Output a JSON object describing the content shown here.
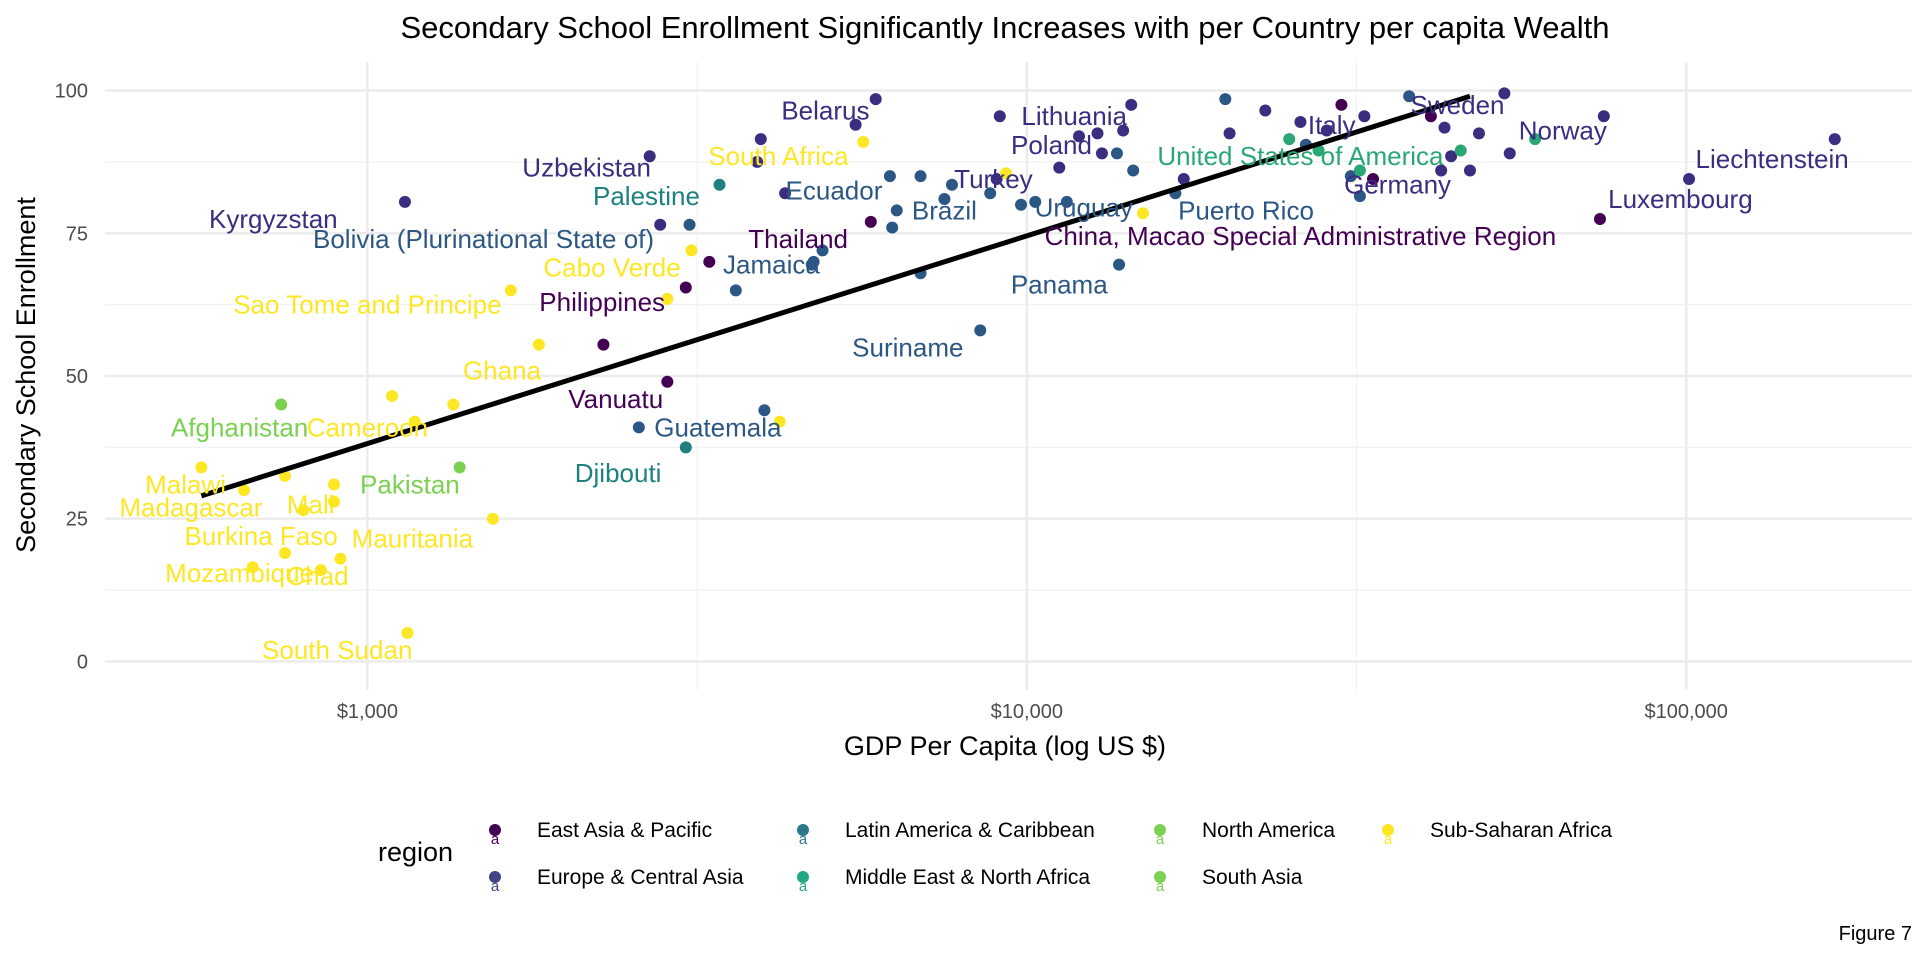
{
  "chart_data": {
    "type": "scatter",
    "title": "Secondary School Enrollment Significantly Increases with per Country per capita Wealth",
    "xlabel": "GDP Per Capita (log US $)",
    "ylabel": "Secondary School Enrollment",
    "x_scale": "log10",
    "xlim": [
      400,
      220000
    ],
    "ylim": [
      -5,
      105
    ],
    "x_ticks": [
      1000,
      10000,
      100000
    ],
    "x_tick_labels": [
      "$1,000",
      "$10,000",
      "$100,000"
    ],
    "y_ticks": [
      0,
      25,
      50,
      75,
      100
    ],
    "y_tick_labels": [
      "0",
      "25",
      "50",
      "75",
      "100"
    ],
    "grid": true,
    "legend": {
      "title": "region",
      "position": "bottom",
      "entries": [
        {
          "name": "East Asia & Pacific",
          "color": "#440154"
        },
        {
          "name": "Europe & Central Asia",
          "color": "#414487"
        },
        {
          "name": "Latin America & Caribbean",
          "color": "#2A788E"
        },
        {
          "name": "Middle East & North Africa",
          "color": "#22A884"
        },
        {
          "name": "North America",
          "color": "#7AD151"
        },
        {
          "name": "South Asia",
          "color": "#7AD151"
        },
        {
          "name": "Sub-Saharan Africa",
          "color": "#FDE725"
        }
      ]
    },
    "colors": {
      "East Asia & Pacific": "#440154",
      "Europe & Central Asia": "#3b2d80",
      "Latin America & Caribbean": "#2c5784",
      "Middle East & North Africa": "#1f8080",
      "North America": "#2ba776",
      "South Asia": "#7ad151",
      "Sub-Saharan Africa": "#fde725"
    },
    "trend_line": {
      "x": [
        560,
        47000
      ],
      "y": [
        29,
        99
      ]
    },
    "points": [
      {
        "x": 560,
        "y": 34,
        "r": "Sub-Saharan Africa"
      },
      {
        "x": 650,
        "y": 30,
        "r": "Sub-Saharan Africa"
      },
      {
        "x": 670,
        "y": 16.5,
        "r": "Sub-Saharan Africa"
      },
      {
        "x": 740,
        "y": 45,
        "r": "South Asia"
      },
      {
        "x": 750,
        "y": 32.5,
        "r": "Sub-Saharan Africa"
      },
      {
        "x": 750,
        "y": 19,
        "r": "Sub-Saharan Africa"
      },
      {
        "x": 800,
        "y": 26.5,
        "r": "Sub-Saharan Africa"
      },
      {
        "x": 850,
        "y": 16,
        "r": "Sub-Saharan Africa"
      },
      {
        "x": 890,
        "y": 31,
        "r": "Sub-Saharan Africa"
      },
      {
        "x": 890,
        "y": 28,
        "r": "Sub-Saharan Africa"
      },
      {
        "x": 910,
        "y": 18,
        "r": "Sub-Saharan Africa"
      },
      {
        "x": 1090,
        "y": 46.5,
        "r": "Sub-Saharan Africa"
      },
      {
        "x": 1140,
        "y": 80.5,
        "r": "Europe & Central Asia"
      },
      {
        "x": 1150,
        "y": 5,
        "r": "Sub-Saharan Africa"
      },
      {
        "x": 1180,
        "y": 42,
        "r": "Sub-Saharan Africa"
      },
      {
        "x": 1350,
        "y": 45,
        "r": "Sub-Saharan Africa"
      },
      {
        "x": 1380,
        "y": 34,
        "r": "South Asia"
      },
      {
        "x": 1550,
        "y": 25,
        "r": "Sub-Saharan Africa"
      },
      {
        "x": 1650,
        "y": 65,
        "r": "Sub-Saharan Africa"
      },
      {
        "x": 1820,
        "y": 55.5,
        "r": "Sub-Saharan Africa"
      },
      {
        "x": 2280,
        "y": 55.5,
        "r": "East Asia & Pacific"
      },
      {
        "x": 2580,
        "y": 41,
        "r": "Latin America & Caribbean"
      },
      {
        "x": 2680,
        "y": 88.5,
        "r": "Europe & Central Asia"
      },
      {
        "x": 2780,
        "y": 76.5,
        "r": "Europe & Central Asia"
      },
      {
        "x": 2850,
        "y": 63.5,
        "r": "Sub-Saharan Africa"
      },
      {
        "x": 2850,
        "y": 49,
        "r": "East Asia & Pacific"
      },
      {
        "x": 3040,
        "y": 37.5,
        "r": "Middle East & North Africa"
      },
      {
        "x": 3040,
        "y": 65.5,
        "r": "East Asia & Pacific"
      },
      {
        "x": 3080,
        "y": 76.5,
        "r": "Latin America & Caribbean"
      },
      {
        "x": 3100,
        "y": 72,
        "r": "Sub-Saharan Africa"
      },
      {
        "x": 3300,
        "y": 70,
        "r": "East Asia & Pacific"
      },
      {
        "x": 3420,
        "y": 83.5,
        "r": "Middle East & North Africa"
      },
      {
        "x": 3620,
        "y": 65,
        "r": "Latin America & Caribbean"
      },
      {
        "x": 3900,
        "y": 87.5,
        "r": "Europe & Central Asia"
      },
      {
        "x": 3950,
        "y": 91.5,
        "r": "Europe & Central Asia"
      },
      {
        "x": 4000,
        "y": 44,
        "r": "Latin America & Caribbean"
      },
      {
        "x": 4220,
        "y": 42,
        "r": "Sub-Saharan Africa"
      },
      {
        "x": 4300,
        "y": 82,
        "r": "Europe & Central Asia"
      },
      {
        "x": 4720,
        "y": 69.5,
        "r": "Latin America & Caribbean"
      },
      {
        "x": 4750,
        "y": 70,
        "r": "Latin America & Caribbean"
      },
      {
        "x": 4900,
        "y": 72,
        "r": "Latin America & Caribbean"
      },
      {
        "x": 5500,
        "y": 94,
        "r": "Europe & Central Asia"
      },
      {
        "x": 5650,
        "y": 91,
        "r": "Sub-Saharan Africa"
      },
      {
        "x": 5800,
        "y": 77,
        "r": "East Asia & Pacific"
      },
      {
        "x": 5900,
        "y": 98.5,
        "r": "Europe & Central Asia"
      },
      {
        "x": 6200,
        "y": 85,
        "r": "Latin America & Caribbean"
      },
      {
        "x": 6250,
        "y": 76,
        "r": "Latin America & Caribbean"
      },
      {
        "x": 6350,
        "y": 79,
        "r": "Latin America & Caribbean"
      },
      {
        "x": 6900,
        "y": 85,
        "r": "Latin America & Caribbean"
      },
      {
        "x": 6900,
        "y": 68,
        "r": "Latin America & Caribbean"
      },
      {
        "x": 7500,
        "y": 81,
        "r": "Latin America & Caribbean"
      },
      {
        "x": 7700,
        "y": 83.5,
        "r": "Latin America & Caribbean"
      },
      {
        "x": 8500,
        "y": 58,
        "r": "Latin America & Caribbean"
      },
      {
        "x": 8800,
        "y": 82,
        "r": "Latin America & Caribbean"
      },
      {
        "x": 9000,
        "y": 84.5,
        "r": "Europe & Central Asia"
      },
      {
        "x": 9100,
        "y": 95.5,
        "r": "Europe & Central Asia"
      },
      {
        "x": 9300,
        "y": 85.5,
        "r": "Sub-Saharan Africa"
      },
      {
        "x": 9800,
        "y": 80,
        "r": "Latin America & Caribbean"
      },
      {
        "x": 10300,
        "y": 80.5,
        "r": "Latin America & Caribbean"
      },
      {
        "x": 11200,
        "y": 86.5,
        "r": "Europe & Central Asia"
      },
      {
        "x": 11500,
        "y": 80.5,
        "r": "Latin America & Caribbean"
      },
      {
        "x": 12000,
        "y": 92,
        "r": "Europe & Central Asia"
      },
      {
        "x": 12800,
        "y": 92.5,
        "r": "Europe & Central Asia"
      },
      {
        "x": 13000,
        "y": 89,
        "r": "Europe & Central Asia"
      },
      {
        "x": 13700,
        "y": 89,
        "r": "Latin America & Caribbean"
      },
      {
        "x": 13800,
        "y": 69.5,
        "r": "Latin America & Caribbean"
      },
      {
        "x": 14000,
        "y": 93,
        "r": "Europe & Central Asia"
      },
      {
        "x": 14400,
        "y": 97.5,
        "r": "Europe & Central Asia"
      },
      {
        "x": 14500,
        "y": 86,
        "r": "Latin America & Caribbean"
      },
      {
        "x": 15000,
        "y": 78.5,
        "r": "Sub-Saharan Africa"
      },
      {
        "x": 16800,
        "y": 82,
        "r": "Latin America & Caribbean"
      },
      {
        "x": 17300,
        "y": 84.5,
        "r": "Europe & Central Asia"
      },
      {
        "x": 20000,
        "y": 98.5,
        "r": "Latin America & Caribbean"
      },
      {
        "x": 20300,
        "y": 92.5,
        "r": "Europe & Central Asia"
      },
      {
        "x": 23000,
        "y": 96.5,
        "r": "Europe & Central Asia"
      },
      {
        "x": 25000,
        "y": 91.5,
        "r": "North America"
      },
      {
        "x": 26000,
        "y": 94.5,
        "r": "Europe & Central Asia"
      },
      {
        "x": 26500,
        "y": 90.5,
        "r": "Latin America & Caribbean"
      },
      {
        "x": 27700,
        "y": 89.5,
        "r": "North America"
      },
      {
        "x": 28500,
        "y": 93,
        "r": "Europe & Central Asia"
      },
      {
        "x": 30000,
        "y": 97.5,
        "r": "East Asia & Pacific"
      },
      {
        "x": 31000,
        "y": 85,
        "r": "Latin America & Caribbean"
      },
      {
        "x": 32000,
        "y": 86,
        "r": "North America"
      },
      {
        "x": 32000,
        "y": 81.5,
        "r": "Latin America & Caribbean"
      },
      {
        "x": 32500,
        "y": 95.5,
        "r": "Europe & Central Asia"
      },
      {
        "x": 33500,
        "y": 84.5,
        "r": "East Asia & Pacific"
      },
      {
        "x": 38000,
        "y": 99,
        "r": "Latin America & Caribbean"
      },
      {
        "x": 41000,
        "y": 95.5,
        "r": "East Asia & Pacific"
      },
      {
        "x": 42500,
        "y": 86,
        "r": "Europe & Central Asia"
      },
      {
        "x": 43000,
        "y": 93.5,
        "r": "Europe & Central Asia"
      },
      {
        "x": 44000,
        "y": 88.5,
        "r": "Europe & Central Asia"
      },
      {
        "x": 45500,
        "y": 89.5,
        "r": "North America"
      },
      {
        "x": 47000,
        "y": 86,
        "r": "Europe & Central Asia"
      },
      {
        "x": 48500,
        "y": 92.5,
        "r": "Europe & Central Asia"
      },
      {
        "x": 53000,
        "y": 99.5,
        "r": "Europe & Central Asia"
      },
      {
        "x": 54000,
        "y": 89,
        "r": "Europe & Central Asia"
      },
      {
        "x": 59000,
        "y": 91.5,
        "r": "North America"
      },
      {
        "x": 74000,
        "y": 77.5,
        "r": "East Asia & Pacific"
      },
      {
        "x": 75000,
        "y": 95.5,
        "r": "Europe & Central Asia"
      },
      {
        "x": 101000,
        "y": 84.5,
        "r": "Europe & Central Asia"
      },
      {
        "x": 168000,
        "y": 91.5,
        "r": "Europe & Central Asia"
      }
    ],
    "labels": [
      {
        "text": "Belarus",
        "x": 4950,
        "y": 96.5,
        "r": "Europe & Central Asia"
      },
      {
        "text": "Lithuania",
        "x": 11800,
        "y": 95.5,
        "r": "Europe & Central Asia"
      },
      {
        "text": "Sweden",
        "x": 45000,
        "y": 97.5,
        "r": "Europe & Central Asia"
      },
      {
        "text": "Norway",
        "x": 65000,
        "y": 93,
        "r": "Europe & Central Asia"
      },
      {
        "text": "Italy",
        "x": 29000,
        "y": 94,
        "r": "Europe & Central Asia"
      },
      {
        "text": "Poland",
        "x": 10900,
        "y": 90.5,
        "r": "Europe & Central Asia"
      },
      {
        "text": "Liechtenstein",
        "x": 135000,
        "y": 88,
        "r": "Europe & Central Asia"
      },
      {
        "text": "Uzbekistan",
        "x": 2150,
        "y": 86.5,
        "r": "Europe & Central Asia"
      },
      {
        "text": "South Africa",
        "x": 4200,
        "y": 88.5,
        "r": "Sub-Saharan Africa"
      },
      {
        "text": "United States of America",
        "x": 26000,
        "y": 88.5,
        "r": "North America"
      },
      {
        "text": "Germany",
        "x": 36500,
        "y": 83.5,
        "r": "Europe & Central Asia"
      },
      {
        "text": "Turkey",
        "x": 8900,
        "y": 84.5,
        "r": "Europe & Central Asia"
      },
      {
        "text": "Palestine",
        "x": 2650,
        "y": 81.5,
        "r": "Middle East & North Africa"
      },
      {
        "text": "Ecuador",
        "x": 5100,
        "y": 82.5,
        "r": "Latin America & Caribbean"
      },
      {
        "text": "Luxembourg",
        "x": 98000,
        "y": 81,
        "r": "Europe & Central Asia"
      },
      {
        "text": "Kyrgyzstan",
        "x": 720,
        "y": 77.5,
        "r": "Europe & Central Asia"
      },
      {
        "text": "Brazil",
        "x": 7500,
        "y": 79,
        "r": "Latin America & Caribbean"
      },
      {
        "text": "Uruguay",
        "x": 12200,
        "y": 79.5,
        "r": "Latin America & Caribbean"
      },
      {
        "text": "Puerto Rico",
        "x": 21500,
        "y": 79,
        "r": "Latin America & Caribbean"
      },
      {
        "text": "Bolivia (Plurinational State of)",
        "x": 1500,
        "y": 74,
        "r": "Latin America & Caribbean"
      },
      {
        "text": "Thailand",
        "x": 4500,
        "y": 74,
        "r": "East Asia & Pacific"
      },
      {
        "text": "China, Macao Special Administrative Region",
        "x": 26000,
        "y": 74.5,
        "r": "East Asia & Pacific"
      },
      {
        "text": "Cabo Verde",
        "x": 2350,
        "y": 69,
        "r": "Sub-Saharan Africa"
      },
      {
        "text": "Jamaica",
        "x": 4100,
        "y": 69.5,
        "r": "Latin America & Caribbean"
      },
      {
        "text": "Panama",
        "x": 11200,
        "y": 66,
        "r": "Latin America & Caribbean"
      },
      {
        "text": "Sao Tome and Principe",
        "x": 1000,
        "y": 62.5,
        "r": "Sub-Saharan Africa"
      },
      {
        "text": "Philippines",
        "x": 2270,
        "y": 63,
        "r": "East Asia & Pacific"
      },
      {
        "text": "Suriname",
        "x": 6600,
        "y": 55,
        "r": "Latin America & Caribbean"
      },
      {
        "text": "Ghana",
        "x": 1600,
        "y": 51,
        "r": "Sub-Saharan Africa"
      },
      {
        "text": "Vanuatu",
        "x": 2380,
        "y": 46,
        "r": "East Asia & Pacific"
      },
      {
        "text": "Afghanistan",
        "x": 640,
        "y": 41,
        "r": "South Asia"
      },
      {
        "text": "Cameroon",
        "x": 1000,
        "y": 41,
        "r": "Sub-Saharan Africa"
      },
      {
        "text": "Guatemala",
        "x": 3400,
        "y": 41,
        "r": "Latin America & Caribbean"
      },
      {
        "text": "Djibouti",
        "x": 2400,
        "y": 33,
        "r": "Middle East & North Africa"
      },
      {
        "text": "Pakistan",
        "x": 1160,
        "y": 31,
        "r": "South Asia"
      },
      {
        "text": "Malawi",
        "x": 530,
        "y": 31,
        "r": "Sub-Saharan Africa"
      },
      {
        "text": "Madagascar",
        "x": 540,
        "y": 27,
        "r": "Sub-Saharan Africa"
      },
      {
        "text": "Mali",
        "x": 820,
        "y": 27.5,
        "r": "Sub-Saharan Africa"
      },
      {
        "text": "Burkina Faso",
        "x": 690,
        "y": 22,
        "r": "Sub-Saharan Africa"
      },
      {
        "text": "Mauritania",
        "x": 1170,
        "y": 21.5,
        "r": "Sub-Saharan Africa"
      },
      {
        "text": "Mozambique",
        "x": 640,
        "y": 15.5,
        "r": "Sub-Saharan Africa"
      },
      {
        "text": "Chad",
        "x": 840,
        "y": 15,
        "r": "Sub-Saharan Africa"
      },
      {
        "text": "South Sudan",
        "x": 900,
        "y": 2,
        "r": "Sub-Saharan Africa"
      }
    ]
  },
  "figure_caption": "Figure 7"
}
